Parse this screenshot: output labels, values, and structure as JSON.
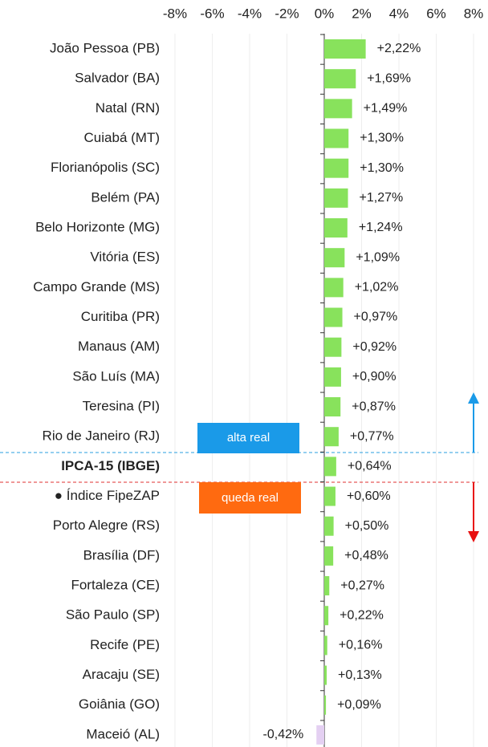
{
  "chart_data": {
    "type": "bar",
    "orientation": "horizontal",
    "categories": [
      "João Pessoa (PB)",
      "Salvador (BA)",
      "Natal (RN)",
      "Cuiabá (MT)",
      "Florianópolis (SC)",
      "Belém (PA)",
      "Belo Horizonte (MG)",
      "Vitória (ES)",
      "Campo Grande (MS)",
      "Curitiba (PR)",
      "Manaus (AM)",
      "São Luís (MA)",
      "Teresina (PI)",
      "Rio de Janeiro (RJ)",
      "IPCA-15 (IBGE)",
      "● Índice FipeZAP",
      "Porto Alegre (RS)",
      "Brasília (DF)",
      "Fortaleza (CE)",
      "São Paulo (SP)",
      "Recife (PE)",
      "Aracaju (SE)",
      "Goiânia (GO)",
      "Maceió (AL)"
    ],
    "values": [
      2.22,
      1.69,
      1.49,
      1.3,
      1.3,
      1.27,
      1.24,
      1.09,
      1.02,
      0.97,
      0.92,
      0.9,
      0.87,
      0.77,
      0.64,
      0.6,
      0.5,
      0.48,
      0.27,
      0.22,
      0.16,
      0.13,
      0.09,
      -0.42
    ],
    "value_labels": [
      "+2,22%",
      "+1,69%",
      "+1,49%",
      "+1,30%",
      "+1,30%",
      "+1,27%",
      "+1,24%",
      "+1,09%",
      "+1,02%",
      "+0,97%",
      "+0,92%",
      "+0,90%",
      "+0,87%",
      "+0,77%",
      "+0,64%",
      "+0,60%",
      "+0,50%",
      "+0,48%",
      "+0,27%",
      "+0,22%",
      "+0,16%",
      "+0,13%",
      "+0,09%",
      "-0,42%"
    ],
    "color": "#88e25c",
    "negative_color": "#e4d0f2",
    "bold_category": 14,
    "xlim": [
      -8,
      8
    ],
    "xticks": [
      {
        "value": -8,
        "label": "-8%"
      },
      {
        "value": -6,
        "label": "-6%"
      },
      {
        "value": -4,
        "label": "-4%"
      },
      {
        "value": -2,
        "label": "-2%"
      },
      {
        "value": 0,
        "label": "0%"
      },
      {
        "value": 2,
        "label": "2%"
      },
      {
        "value": 4,
        "label": "4%"
      },
      {
        "value": 6,
        "label": "6%"
      },
      {
        "value": 8,
        "label": "8%"
      }
    ],
    "grid": true,
    "annotations": [
      "alta real",
      "queda real"
    ]
  }
}
